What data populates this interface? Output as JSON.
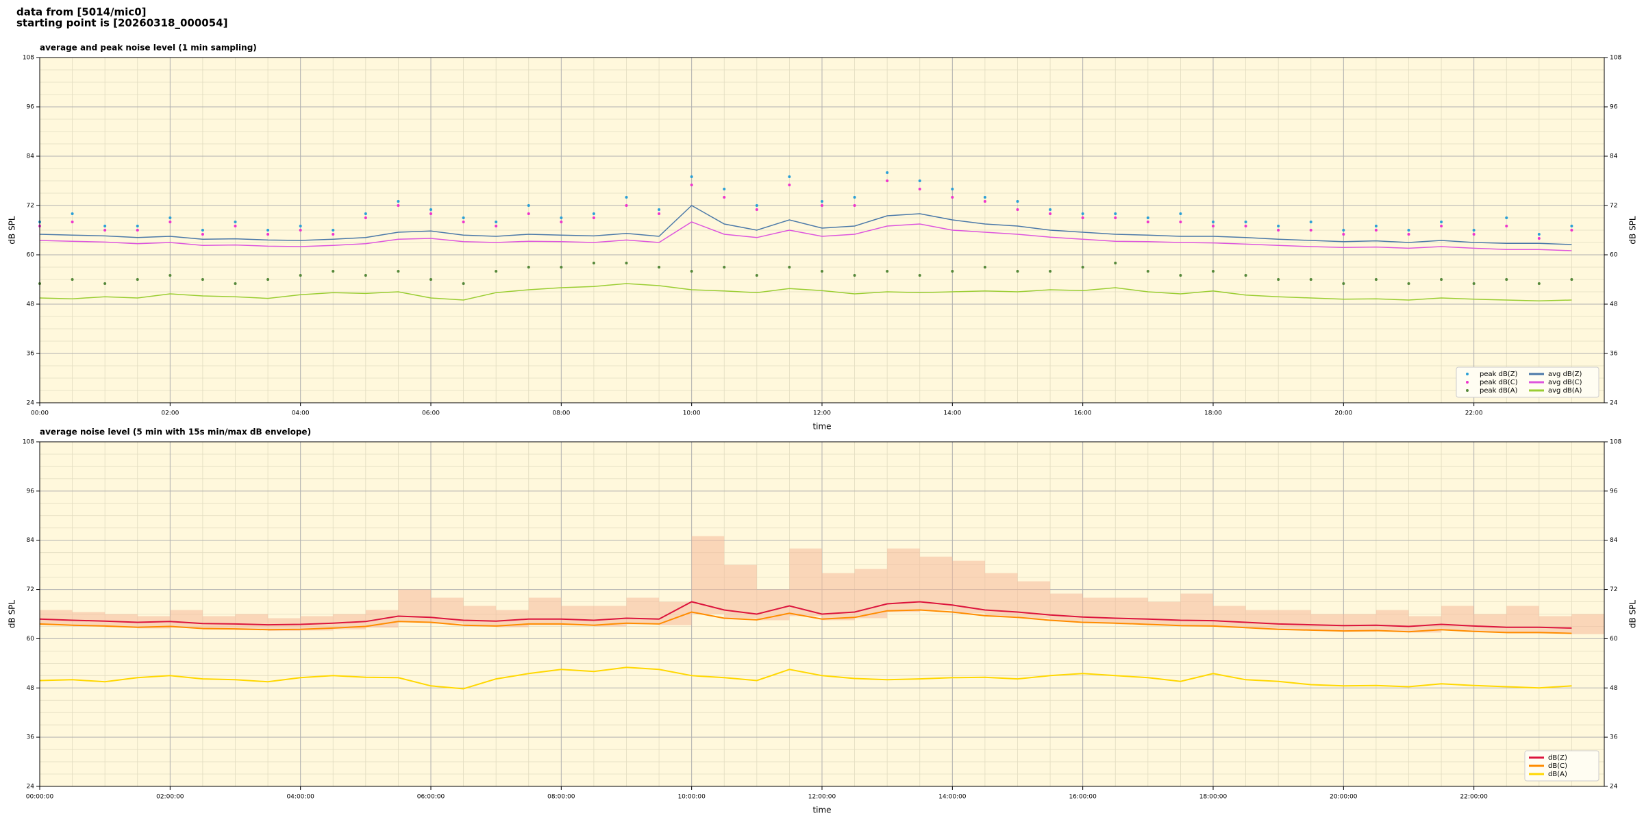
{
  "header": {
    "line1": "data from [5014/mic0]",
    "line2": "starting point is [20260318_000054]"
  },
  "chart_data": [
    {
      "type": "line",
      "title": "average and peak noise level (1 min sampling)",
      "xlabel": "time",
      "ylabel": "dB SPL",
      "x": [
        0,
        0.5,
        1,
        1.5,
        2,
        2.5,
        3,
        3.5,
        4,
        4.5,
        5,
        5.5,
        6,
        6.5,
        7,
        7.5,
        8,
        8.5,
        9,
        9.5,
        10,
        10.5,
        11,
        11.5,
        12,
        12.5,
        13,
        13.5,
        14,
        14.5,
        15,
        15.5,
        16,
        16.5,
        17,
        17.5,
        18,
        18.5,
        19,
        19.5,
        20,
        20.5,
        21,
        21.5,
        22,
        22.5,
        23,
        23.5
      ],
      "xlim": [
        0,
        24
      ],
      "xticks": [
        {
          "value": 0,
          "label": "00:00"
        },
        {
          "value": 2,
          "label": "02:00"
        },
        {
          "value": 4,
          "label": "04:00"
        },
        {
          "value": 6,
          "label": "06:00"
        },
        {
          "value": 8,
          "label": "08:00"
        },
        {
          "value": 10,
          "label": "10:00"
        },
        {
          "value": 12,
          "label": "12:00"
        },
        {
          "value": 14,
          "label": "14:00"
        },
        {
          "value": 16,
          "label": "16:00"
        },
        {
          "value": 18,
          "label": "18:00"
        },
        {
          "value": 20,
          "label": "20:00"
        },
        {
          "value": 22,
          "label": "22:00"
        }
      ],
      "ylim": [
        24,
        108
      ],
      "yticks": [
        24,
        36,
        48,
        60,
        72,
        84,
        96,
        108
      ],
      "right_axis": true,
      "grid": true,
      "background": "#fff8dc",
      "legend": "lower right",
      "legend_columns": 2,
      "series": [
        {
          "name": "peak dB(Z)",
          "kind": "scatter",
          "color": "#2a9fd6",
          "values": [
            68,
            70,
            67,
            67,
            69,
            66,
            68,
            66,
            67,
            66,
            70,
            73,
            71,
            69,
            68,
            72,
            69,
            70,
            74,
            71,
            79,
            76,
            72,
            79,
            73,
            74,
            80,
            78,
            76,
            74,
            73,
            71,
            70,
            70,
            69,
            70,
            68,
            68,
            67,
            68,
            66,
            67,
            66,
            68,
            66,
            69,
            65,
            67
          ]
        },
        {
          "name": "peak dB(C)",
          "kind": "scatter",
          "color": "#ee33cc",
          "values": [
            67,
            68,
            66,
            66,
            68,
            65,
            67,
            65,
            66,
            65,
            69,
            72,
            70,
            68,
            67,
            70,
            68,
            69,
            72,
            70,
            77,
            74,
            71,
            77,
            72,
            72,
            78,
            76,
            74,
            73,
            71,
            70,
            69,
            69,
            68,
            68,
            67,
            67,
            66,
            66,
            65,
            66,
            65,
            67,
            65,
            67,
            64,
            66
          ]
        },
        {
          "name": "peak dB(A)",
          "kind": "scatter",
          "color": "#55883a",
          "values": [
            53,
            54,
            53,
            54,
            55,
            54,
            53,
            54,
            55,
            56,
            55,
            56,
            54,
            53,
            56,
            57,
            57,
            58,
            58,
            57,
            56,
            57,
            55,
            57,
            56,
            55,
            56,
            55,
            56,
            57,
            56,
            56,
            57,
            58,
            56,
            55,
            56,
            55,
            54,
            54,
            53,
            54,
            53,
            54,
            53,
            54,
            53,
            54
          ]
        },
        {
          "name": "avg dB(Z)",
          "kind": "line",
          "color": "#4a78a8",
          "values": [
            65,
            64.8,
            64.6,
            64.2,
            64.5,
            63.8,
            63.9,
            63.6,
            63.5,
            63.8,
            64.2,
            65.5,
            65.8,
            64.8,
            64.5,
            65,
            64.8,
            64.6,
            65.2,
            64.5,
            72,
            67.5,
            66,
            68.5,
            66.5,
            67,
            69.5,
            70,
            68.5,
            67.5,
            67,
            66,
            65.5,
            65,
            64.8,
            64.5,
            64.5,
            64.2,
            63.8,
            63.5,
            63.2,
            63.4,
            63,
            63.5,
            63,
            62.8,
            62.8,
            62.5
          ]
        },
        {
          "name": "avg dB(C)",
          "kind": "line",
          "color": "#dd55dd",
          "values": [
            63.5,
            63.3,
            63.1,
            62.7,
            63,
            62.3,
            62.4,
            62.1,
            62,
            62.3,
            62.7,
            63.8,
            64,
            63.2,
            63,
            63.3,
            63.2,
            63,
            63.6,
            63,
            68,
            65,
            64.2,
            66,
            64.5,
            65,
            67,
            67.5,
            66,
            65.5,
            65,
            64.3,
            63.8,
            63.3,
            63.2,
            63,
            62.9,
            62.6,
            62.3,
            62,
            61.8,
            61.9,
            61.6,
            62,
            61.6,
            61.3,
            61.3,
            61
          ]
        },
        {
          "name": "avg dB(A)",
          "kind": "line",
          "color": "#9acd32",
          "values": [
            49.5,
            49.3,
            49.8,
            49.5,
            50.5,
            50,
            49.8,
            49.4,
            50.3,
            50.8,
            50.6,
            51,
            49.5,
            49,
            50.8,
            51.5,
            52,
            52.3,
            53,
            52.5,
            51.5,
            51.2,
            50.8,
            51.8,
            51.3,
            50.5,
            51,
            50.8,
            51,
            51.2,
            51,
            51.5,
            51.3,
            52,
            51,
            50.5,
            51.2,
            50.2,
            49.8,
            49.5,
            49.2,
            49.3,
            49,
            49.5,
            49.2,
            49,
            48.8,
            49
          ]
        }
      ]
    },
    {
      "type": "line",
      "title": "average noise level (5 min with 15s min/max dB envelope)",
      "xlabel": "time",
      "ylabel": "dB SPL",
      "x": [
        0,
        0.5,
        1,
        1.5,
        2,
        2.5,
        3,
        3.5,
        4,
        4.5,
        5,
        5.5,
        6,
        6.5,
        7,
        7.5,
        8,
        8.5,
        9,
        9.5,
        10,
        10.5,
        11,
        11.5,
        12,
        12.5,
        13,
        13.5,
        14,
        14.5,
        15,
        15.5,
        16,
        16.5,
        17,
        17.5,
        18,
        18.5,
        19,
        19.5,
        20,
        20.5,
        21,
        21.5,
        22,
        22.5,
        23,
        23.5
      ],
      "xlim": [
        0,
        24
      ],
      "xticks": [
        {
          "value": 0,
          "label": "00:00:00"
        },
        {
          "value": 2,
          "label": "02:00:00"
        },
        {
          "value": 4,
          "label": "04:00:00"
        },
        {
          "value": 6,
          "label": "06:00:00"
        },
        {
          "value": 8,
          "label": "08:00:00"
        },
        {
          "value": 10,
          "label": "10:00:00"
        },
        {
          "value": 12,
          "label": "12:00:00"
        },
        {
          "value": 14,
          "label": "14:00:00"
        },
        {
          "value": 16,
          "label": "16:00:00"
        },
        {
          "value": 18,
          "label": "18:00:00"
        },
        {
          "value": 20,
          "label": "20:00:00"
        },
        {
          "value": 22,
          "label": "22:00:00"
        }
      ],
      "ylim": [
        24,
        108
      ],
      "yticks": [
        24,
        36,
        48,
        60,
        72,
        84,
        96,
        108
      ],
      "right_axis": true,
      "grid": true,
      "background": "#fff8dc",
      "legend": "lower right",
      "legend_columns": 1,
      "envelope": {
        "color": "#f5b99b",
        "low": [
          63.3,
          63,
          62.8,
          62.5,
          62.7,
          62.2,
          62.1,
          61.9,
          62,
          62.3,
          62.7,
          64,
          63.7,
          63,
          62.8,
          63.3,
          63.3,
          63,
          63.5,
          63.3,
          66,
          65,
          64.5,
          65.5,
          64.5,
          65,
          66.5,
          67,
          66.2,
          65.5,
          65,
          64.3,
          63.8,
          63.5,
          63.3,
          63,
          62.9,
          62.5,
          62.1,
          61.9,
          61.7,
          61.8,
          61.5,
          62,
          61.6,
          61.3,
          61.3,
          61.1
        ],
        "high": [
          67,
          66.5,
          66,
          65.5,
          67,
          65.5,
          66,
          65,
          65.5,
          66,
          67,
          72,
          70,
          68,
          67,
          70,
          68,
          68,
          70,
          69,
          85,
          78,
          72,
          82,
          76,
          77,
          82,
          80,
          79,
          76,
          74,
          71,
          70,
          70,
          69,
          71,
          68,
          67,
          67,
          66,
          66,
          67,
          65.5,
          68,
          66,
          68,
          65.5,
          66
        ]
      },
      "series": [
        {
          "name": "dB(Z)",
          "kind": "line",
          "color": "#dc143c",
          "values": [
            64.8,
            64.5,
            64.3,
            64,
            64.2,
            63.7,
            63.6,
            63.4,
            63.5,
            63.8,
            64.2,
            65.5,
            65.2,
            64.5,
            64.3,
            64.8,
            64.8,
            64.5,
            65,
            64.8,
            69,
            67,
            66,
            68,
            66,
            66.5,
            68.5,
            69,
            68.2,
            67,
            66.5,
            65.8,
            65.3,
            65,
            64.8,
            64.5,
            64.4,
            64,
            63.6,
            63.4,
            63.2,
            63.3,
            63,
            63.5,
            63.1,
            62.8,
            62.8,
            62.6
          ]
        },
        {
          "name": "dB(C)",
          "kind": "line",
          "color": "#ff8c00",
          "values": [
            63.6,
            63.3,
            63.1,
            62.8,
            63,
            62.5,
            62.4,
            62.2,
            62.3,
            62.6,
            63,
            64.2,
            64,
            63.3,
            63.1,
            63.6,
            63.6,
            63.3,
            63.8,
            63.6,
            66.5,
            65,
            64.6,
            66.2,
            64.8,
            65.2,
            66.8,
            67,
            66.5,
            65.6,
            65.2,
            64.5,
            64,
            63.8,
            63.5,
            63.2,
            63.1,
            62.7,
            62.3,
            62.1,
            61.9,
            62,
            61.7,
            62.2,
            61.8,
            61.5,
            61.5,
            61.3
          ]
        },
        {
          "name": "dB(A)",
          "kind": "line",
          "color": "#ffd700",
          "values": [
            49.8,
            50,
            49.5,
            50.5,
            51,
            50.2,
            50,
            49.5,
            50.5,
            51,
            50.6,
            50.5,
            48.5,
            47.8,
            50.2,
            51.5,
            52.5,
            52,
            53,
            52.5,
            51,
            50.5,
            49.8,
            52.5,
            51,
            50.3,
            50,
            50.2,
            50.5,
            50.6,
            50.2,
            51,
            51.5,
            51,
            50.5,
            49.6,
            51.5,
            50,
            49.6,
            48.8,
            48.5,
            48.6,
            48.3,
            49,
            48.6,
            48.3,
            48,
            48.5
          ]
        }
      ]
    }
  ]
}
